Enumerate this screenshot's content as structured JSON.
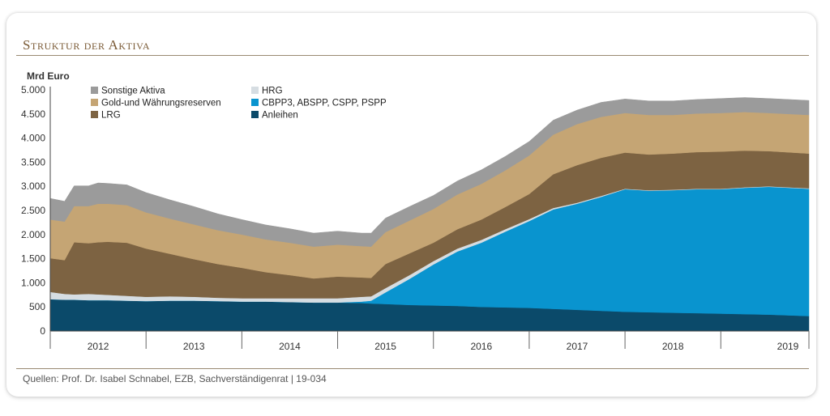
{
  "header": {
    "title": "Struktur der Aktiva"
  },
  "footer": {
    "source": "Quellen: Prof. Dr. Isabel Schnabel, EZB, Sachverständigenrat | 19-034"
  },
  "chart_data": {
    "type": "area",
    "stacked": true,
    "title": "Struktur der Aktiva",
    "ylabel": "Mrd Euro",
    "xlabel": "",
    "ylim": [
      0,
      5000
    ],
    "yticks": [
      0,
      500,
      1000,
      1500,
      2000,
      2500,
      3000,
      3500,
      4000,
      4500,
      5000
    ],
    "ytick_labels": [
      "0",
      "500",
      "1.000",
      "1.500",
      "2.000",
      "2.500",
      "3.000",
      "3.500",
      "4.000",
      "4.500",
      "5.000"
    ],
    "xlim": [
      2011.5,
      2019.42
    ],
    "xtick_labels": [
      "2012",
      "2013",
      "2014",
      "2015",
      "2016",
      "2017",
      "2018",
      "2019"
    ],
    "legend_position": "top-left",
    "grid": false,
    "x": [
      2011.5,
      2011.65,
      2011.75,
      2011.9,
      2012.0,
      2012.1,
      2012.3,
      2012.5,
      2012.75,
      2013.0,
      2013.25,
      2013.5,
      2013.75,
      2014.0,
      2014.25,
      2014.5,
      2014.75,
      2014.85,
      2015.0,
      2015.25,
      2015.5,
      2015.75,
      2016.0,
      2016.25,
      2016.5,
      2016.75,
      2017.0,
      2017.25,
      2017.5,
      2017.75,
      2018.0,
      2018.25,
      2018.5,
      2018.75,
      2019.0,
      2019.42
    ],
    "series": [
      {
        "name": "Anleihen",
        "color": "#0b4a6a",
        "values": [
          660,
          650,
          650,
          640,
          640,
          640,
          630,
          620,
          630,
          630,
          620,
          610,
          610,
          600,
          590,
          590,
          580,
          570,
          560,
          540,
          530,
          520,
          500,
          490,
          480,
          460,
          440,
          420,
          400,
          390,
          380,
          370,
          360,
          350,
          340,
          310
        ]
      },
      {
        "name": "CBPP3, ABSPP, CSPP, PSPP",
        "color": "#0994cf",
        "values": [
          0,
          0,
          0,
          0,
          0,
          0,
          0,
          0,
          0,
          0,
          0,
          0,
          0,
          0,
          0,
          0,
          30,
          60,
          240,
          540,
          850,
          1130,
          1330,
          1570,
          1800,
          2060,
          2200,
          2360,
          2540,
          2520,
          2540,
          2570,
          2580,
          2620,
          2650,
          2640
        ]
      },
      {
        "name": "HRG",
        "color": "#d6dde2",
        "values": [
          150,
          120,
          110,
          130,
          120,
          110,
          100,
          90,
          90,
          80,
          70,
          70,
          70,
          80,
          90,
          90,
          100,
          90,
          90,
          80,
          70,
          60,
          60,
          50,
          40,
          30,
          20,
          20,
          10,
          10,
          10,
          10,
          10,
          10,
          10,
          10
        ]
      },
      {
        "name": "LRG",
        "color": "#7d6342",
        "values": [
          700,
          700,
          1080,
          1050,
          1080,
          1100,
          1100,
          1000,
          880,
          780,
          700,
          630,
          540,
          480,
          410,
          450,
          400,
          380,
          500,
          450,
          380,
          400,
          420,
          460,
          520,
          700,
          780,
          790,
          750,
          740,
          750,
          760,
          770,
          760,
          730,
          720
        ]
      },
      {
        "name": "Gold-und Währungsreserven",
        "color": "#c5a574",
        "values": [
          800,
          800,
          750,
          770,
          800,
          790,
          780,
          750,
          730,
          720,
          700,
          690,
          680,
          670,
          660,
          660,
          650,
          650,
          660,
          680,
          700,
          720,
          740,
          760,
          800,
          820,
          850,
          850,
          820,
          820,
          800,
          800,
          800,
          800,
          790,
          800
        ]
      },
      {
        "name": "Sonstige Aktiva",
        "color": "#9b9b9b",
        "values": [
          440,
          420,
          420,
          420,
          430,
          420,
          420,
          410,
          390,
          370,
          340,
          310,
          300,
          290,
          280,
          280,
          270,
          280,
          290,
          290,
          280,
          280,
          290,
          290,
          290,
          300,
          290,
          300,
          290,
          290,
          290,
          290,
          300,
          300,
          300,
          300
        ]
      }
    ],
    "legend": [
      {
        "name": "Sonstige Aktiva",
        "color": "#9b9b9b"
      },
      {
        "name": "HRG",
        "color": "#d6dde2"
      },
      {
        "name": "Gold-und Währungsreserven",
        "color": "#c5a574"
      },
      {
        "name": "CBPP3, ABSPP, CSPP, PSPP",
        "color": "#0994cf"
      },
      {
        "name": "LRG",
        "color": "#7d6342"
      },
      {
        "name": "Anleihen",
        "color": "#0b4a6a"
      }
    ]
  }
}
